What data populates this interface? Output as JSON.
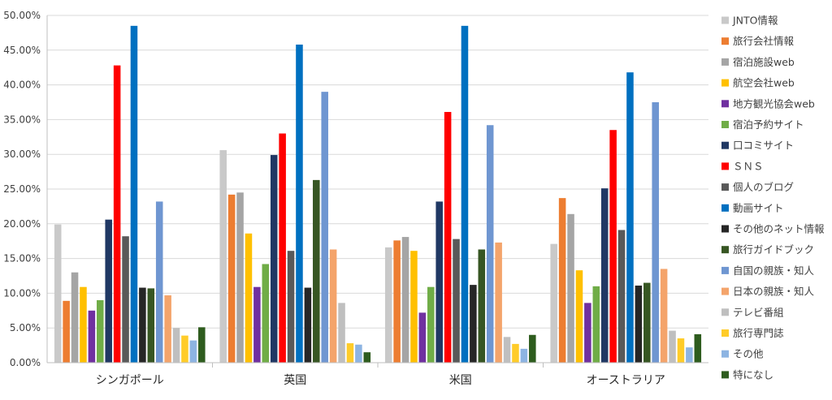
{
  "chart_data": {
    "type": "bar",
    "title": "",
    "xlabel": "",
    "ylabel": "",
    "ylim": [
      0,
      50
    ],
    "yticks": [
      "0.00%",
      "5.00%",
      "10.00%",
      "15.00%",
      "20.00%",
      "25.00%",
      "30.00%",
      "35.00%",
      "40.00%",
      "45.00%",
      "50.00%"
    ],
    "legend_position": "right",
    "categories": [
      "シンガポール",
      "英国",
      "米国",
      "オーストラリア"
    ],
    "series": [
      {
        "name": "JNTO情報",
        "color": "#c9c9c9",
        "values": [
          19.9,
          30.6,
          16.6,
          17.1
        ]
      },
      {
        "name": "旅行会社情報",
        "color": "#ed7d31",
        "values": [
          8.9,
          24.2,
          17.6,
          23.7
        ]
      },
      {
        "name": "宿泊施設web",
        "color": "#a5a5a5",
        "values": [
          13.0,
          24.5,
          18.1,
          21.4
        ]
      },
      {
        "name": "航空会社web",
        "color": "#ffc000",
        "values": [
          10.9,
          18.6,
          16.1,
          13.3
        ]
      },
      {
        "name": "地方観光協会web",
        "color": "#7030a0",
        "values": [
          7.5,
          10.9,
          7.2,
          8.6
        ]
      },
      {
        "name": "宿泊予約サイト",
        "color": "#70ad47",
        "values": [
          9.0,
          14.2,
          10.9,
          11.0
        ]
      },
      {
        "name": "口コミサイト",
        "color": "#203864",
        "values": [
          20.6,
          29.9,
          23.2,
          25.1
        ]
      },
      {
        "name": "ＳＮＳ",
        "color": "#ff0000",
        "values": [
          42.8,
          33.0,
          36.1,
          33.5
        ]
      },
      {
        "name": "個人のブログ",
        "color": "#595959",
        "values": [
          18.2,
          16.1,
          17.8,
          19.1
        ]
      },
      {
        "name": "動画サイト",
        "color": "#0070c0",
        "values": [
          48.5,
          45.8,
          48.5,
          41.8
        ]
      },
      {
        "name": "その他のネット情報",
        "color": "#262626",
        "values": [
          10.8,
          10.8,
          11.2,
          11.1
        ]
      },
      {
        "name": "旅行ガイドブック",
        "color": "#375623",
        "values": [
          10.7,
          26.3,
          16.3,
          11.5
        ]
      },
      {
        "name": "自国の親族・知人",
        "color": "#6f96d1",
        "values": [
          23.2,
          39.0,
          34.2,
          37.5
        ]
      },
      {
        "name": "日本の親族・知人",
        "color": "#f4a46b",
        "values": [
          9.7,
          16.3,
          17.3,
          13.5
        ]
      },
      {
        "name": "テレビ番組",
        "color": "#bfbfbf",
        "values": [
          5.0,
          8.6,
          3.7,
          4.6
        ]
      },
      {
        "name": "旅行専門誌",
        "color": "#ffcc29",
        "values": [
          3.9,
          2.8,
          2.7,
          3.5
        ]
      },
      {
        "name": "その他",
        "color": "#8db4e2",
        "values": [
          3.2,
          2.6,
          2.0,
          2.2
        ]
      },
      {
        "name": "特になし",
        "color": "#2e5c1e",
        "values": [
          5.1,
          1.5,
          4.0,
          4.1
        ]
      }
    ]
  }
}
